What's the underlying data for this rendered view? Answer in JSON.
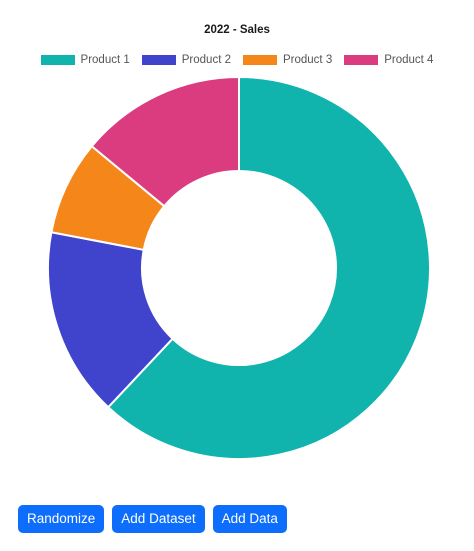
{
  "chart_data": {
    "type": "doughnut",
    "title": "2022 - Sales",
    "legend_position": "top",
    "categories": [
      "Product 1",
      "Product 2",
      "Product 3",
      "Product 4"
    ],
    "values": [
      62,
      16,
      8,
      14
    ],
    "colors": [
      "#11b3ad",
      "#4044cc",
      "#f5861a",
      "#db3c7f"
    ]
  },
  "buttons": {
    "randomize": "Randomize",
    "add_dataset": "Add Dataset",
    "add_data": "Add Data"
  }
}
